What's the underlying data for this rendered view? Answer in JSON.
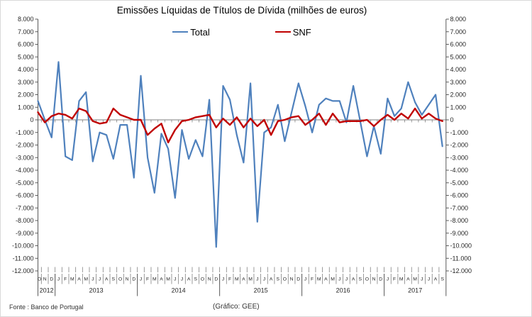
{
  "title": "Emissões Líquidas de Títulos de Dívida (milhões de euros)",
  "legend": [
    {
      "label": "Total",
      "color": "#4F81BD"
    },
    {
      "label": "SNF",
      "color": "#C00000"
    }
  ],
  "footer": {
    "source": "Fonte : Banco de Portugal",
    "credit": "(Gráfico: GEE)"
  },
  "chart_data": {
    "type": "line",
    "title": "Emissões Líquidas de Títulos de Dívida (milhões de euros)",
    "unit": "milhões de euros",
    "legend_position": "top",
    "grid": "zero-line-only",
    "y_axis": {
      "min": -12000,
      "max": 8000,
      "step": 1000,
      "sides": [
        "left",
        "right"
      ],
      "tick_labels": [
        "8.000",
        "7.000",
        "6.000",
        "5.000",
        "4.000",
        "3.000",
        "2.000",
        "1.000",
        "0",
        "-1.000",
        "-2.000",
        "-3.000",
        "-4.000",
        "-5.000",
        "-6.000",
        "-7.000",
        "-8.000",
        "-9.000",
        "-10.000",
        "-11.000",
        "-12.000"
      ]
    },
    "x_axis": {
      "years": [
        {
          "label": "2012",
          "months": [
            "O",
            "N",
            "D"
          ]
        },
        {
          "label": "2013",
          "months": [
            "J",
            "F",
            "M",
            "A",
            "M",
            "J",
            "J",
            "A",
            "S",
            "O",
            "N",
            "D"
          ]
        },
        {
          "label": "2014",
          "months": [
            "J",
            "F",
            "M",
            "A",
            "M",
            "J",
            "J",
            "A",
            "S",
            "O",
            "N",
            "D"
          ]
        },
        {
          "label": "2015",
          "months": [
            "J",
            "F",
            "M",
            "A",
            "M",
            "J",
            "J",
            "A",
            "S",
            "O",
            "N",
            "D"
          ]
        },
        {
          "label": "2016",
          "months": [
            "J",
            "F",
            "M",
            "A",
            "M",
            "J",
            "J",
            "A",
            "S",
            "O",
            "N",
            "D"
          ]
        },
        {
          "label": "2017",
          "months": [
            "J",
            "F",
            "M",
            "A",
            "M",
            "J",
            "J",
            "A",
            "S"
          ]
        }
      ]
    },
    "series": [
      {
        "name": "Total",
        "color": "#4F81BD",
        "width": 2.2,
        "values": [
          1500,
          0,
          -1400,
          4600,
          -2900,
          -3200,
          1500,
          2200,
          -3300,
          -1000,
          -1200,
          -3100,
          -400,
          -400,
          -4600,
          3500,
          -3000,
          -5800,
          -1100,
          -2300,
          -6200,
          -800,
          -3100,
          -1600,
          -2900,
          1600,
          -10100,
          2700,
          1600,
          -1200,
          -3400,
          2900,
          -8100,
          -1000,
          -600,
          1200,
          -1700,
          600,
          2900,
          1100,
          -1000,
          1200,
          1700,
          1500,
          1500,
          -200,
          2700,
          -100,
          -2900,
          -500,
          -2700,
          1700,
          300,
          900,
          3000,
          1400,
          400,
          1200,
          2000,
          -2100
        ]
      },
      {
        "name": "SNF",
        "color": "#C00000",
        "width": 2.4,
        "values": [
          600,
          -200,
          300,
          500,
          400,
          100,
          900,
          700,
          -100,
          -300,
          -200,
          900,
          400,
          200,
          0,
          0,
          -1200,
          -700,
          -300,
          -1800,
          -800,
          -100,
          0,
          200,
          300,
          400,
          -600,
          100,
          -400,
          200,
          -600,
          100,
          -500,
          0,
          -1200,
          -100,
          0,
          200,
          300,
          -400,
          0,
          500,
          -400,
          500,
          -200,
          -100,
          -100,
          -100,
          0,
          -500,
          0,
          400,
          0,
          500,
          100,
          900,
          100,
          500,
          100,
          -100
        ]
      }
    ]
  },
  "colors": {
    "total_line": "#4F81BD",
    "snf_line": "#C00000",
    "axis": "#595959",
    "zero_line": "#808080",
    "text": "#262626"
  }
}
